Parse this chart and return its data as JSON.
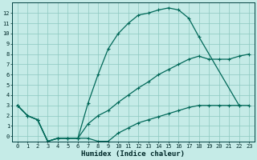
{
  "xlabel": "Humidex (Indice chaleur)",
  "bg_color": "#c5ebe7",
  "grid_color": "#8cc8c0",
  "line_color": "#006858",
  "xlim": [
    -0.5,
    23.5
  ],
  "ylim": [
    -0.5,
    13.0
  ],
  "line_top_x": [
    0,
    1,
    2,
    3,
    4,
    5,
    6,
    7,
    8,
    9,
    10,
    11,
    12,
    13,
    14,
    15,
    16,
    17,
    18,
    22
  ],
  "line_top_y": [
    3.0,
    2.0,
    1.6,
    -0.5,
    -0.2,
    -0.2,
    -0.2,
    3.2,
    6.0,
    8.5,
    10.0,
    11.0,
    11.8,
    12.0,
    12.3,
    12.5,
    12.3,
    11.5,
    9.7,
    3.0
  ],
  "line_mid_x": [
    0,
    1,
    2,
    3,
    4,
    5,
    6,
    7,
    8,
    9,
    10,
    11,
    12,
    13,
    14,
    15,
    16,
    17,
    18,
    19,
    20,
    21,
    22,
    23
  ],
  "line_mid_y": [
    3.0,
    2.0,
    1.6,
    -0.5,
    -0.2,
    -0.2,
    -0.2,
    1.2,
    2.0,
    2.5,
    3.3,
    4.0,
    4.7,
    5.3,
    6.0,
    6.5,
    7.0,
    7.5,
    7.8,
    7.5,
    7.5,
    7.5,
    7.8,
    8.0
  ],
  "line_bot_x": [
    0,
    1,
    2,
    3,
    4,
    5,
    6,
    7,
    8,
    9,
    10,
    11,
    12,
    13,
    14,
    15,
    16,
    17,
    18,
    19,
    20,
    21,
    22,
    23
  ],
  "line_bot_y": [
    3.0,
    2.0,
    1.6,
    -0.5,
    -0.2,
    -0.2,
    -0.2,
    -0.2,
    -0.5,
    -0.5,
    0.3,
    0.8,
    1.3,
    1.6,
    1.9,
    2.2,
    2.5,
    2.8,
    3.0,
    3.0,
    3.0,
    3.0,
    3.0,
    3.0
  ],
  "yticks": [
    0,
    1,
    2,
    3,
    4,
    5,
    6,
    7,
    8,
    9,
    10,
    11,
    12
  ],
  "xticks": [
    0,
    1,
    2,
    3,
    4,
    5,
    6,
    7,
    8,
    9,
    10,
    11,
    12,
    13,
    14,
    15,
    16,
    17,
    18,
    19,
    20,
    21,
    22,
    23
  ]
}
